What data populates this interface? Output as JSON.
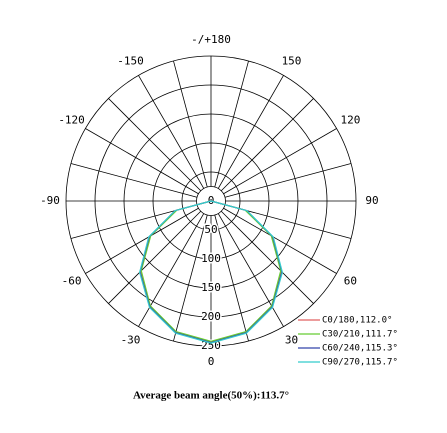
{
  "chart_data": {
    "type": "polar",
    "x": [
      -90,
      -75,
      -60,
      -45,
      -30,
      -15,
      0,
      15,
      30,
      45,
      60,
      75,
      90
    ],
    "series": [
      {
        "name": "C0/180,112.0°",
        "color": "#e06060",
        "values": [
          0,
          62,
          121,
          171,
          210,
          234,
          243,
          234,
          210,
          171,
          121,
          62,
          0
        ]
      },
      {
        "name": "C30/210,111.7°",
        "color": "#66cc33",
        "values": [
          0,
          61,
          120,
          170,
          209,
          233,
          242,
          233,
          209,
          170,
          120,
          61,
          0
        ]
      },
      {
        "name": "C60/240,115.3°",
        "color": "#3344aa",
        "values": [
          0,
          64,
          123,
          173,
          211,
          235,
          244,
          235,
          211,
          173,
          123,
          64,
          0
        ]
      },
      {
        "name": "C90/270,115.7°",
        "color": "#33cccc",
        "values": [
          0,
          64,
          124,
          174,
          212,
          236,
          245,
          236,
          212,
          174,
          124,
          64,
          0
        ]
      }
    ],
    "rlim": [
      0,
      250
    ],
    "rticks": [
      0,
      50,
      100,
      150,
      200,
      250
    ],
    "angle_ticks": [
      {
        "value": 180,
        "label": "-/+180"
      },
      150,
      120,
      90,
      60,
      30,
      0,
      -30,
      -60,
      -90,
      -120,
      -150
    ],
    "caption": "Average beam angle(50%):113.7°"
  }
}
